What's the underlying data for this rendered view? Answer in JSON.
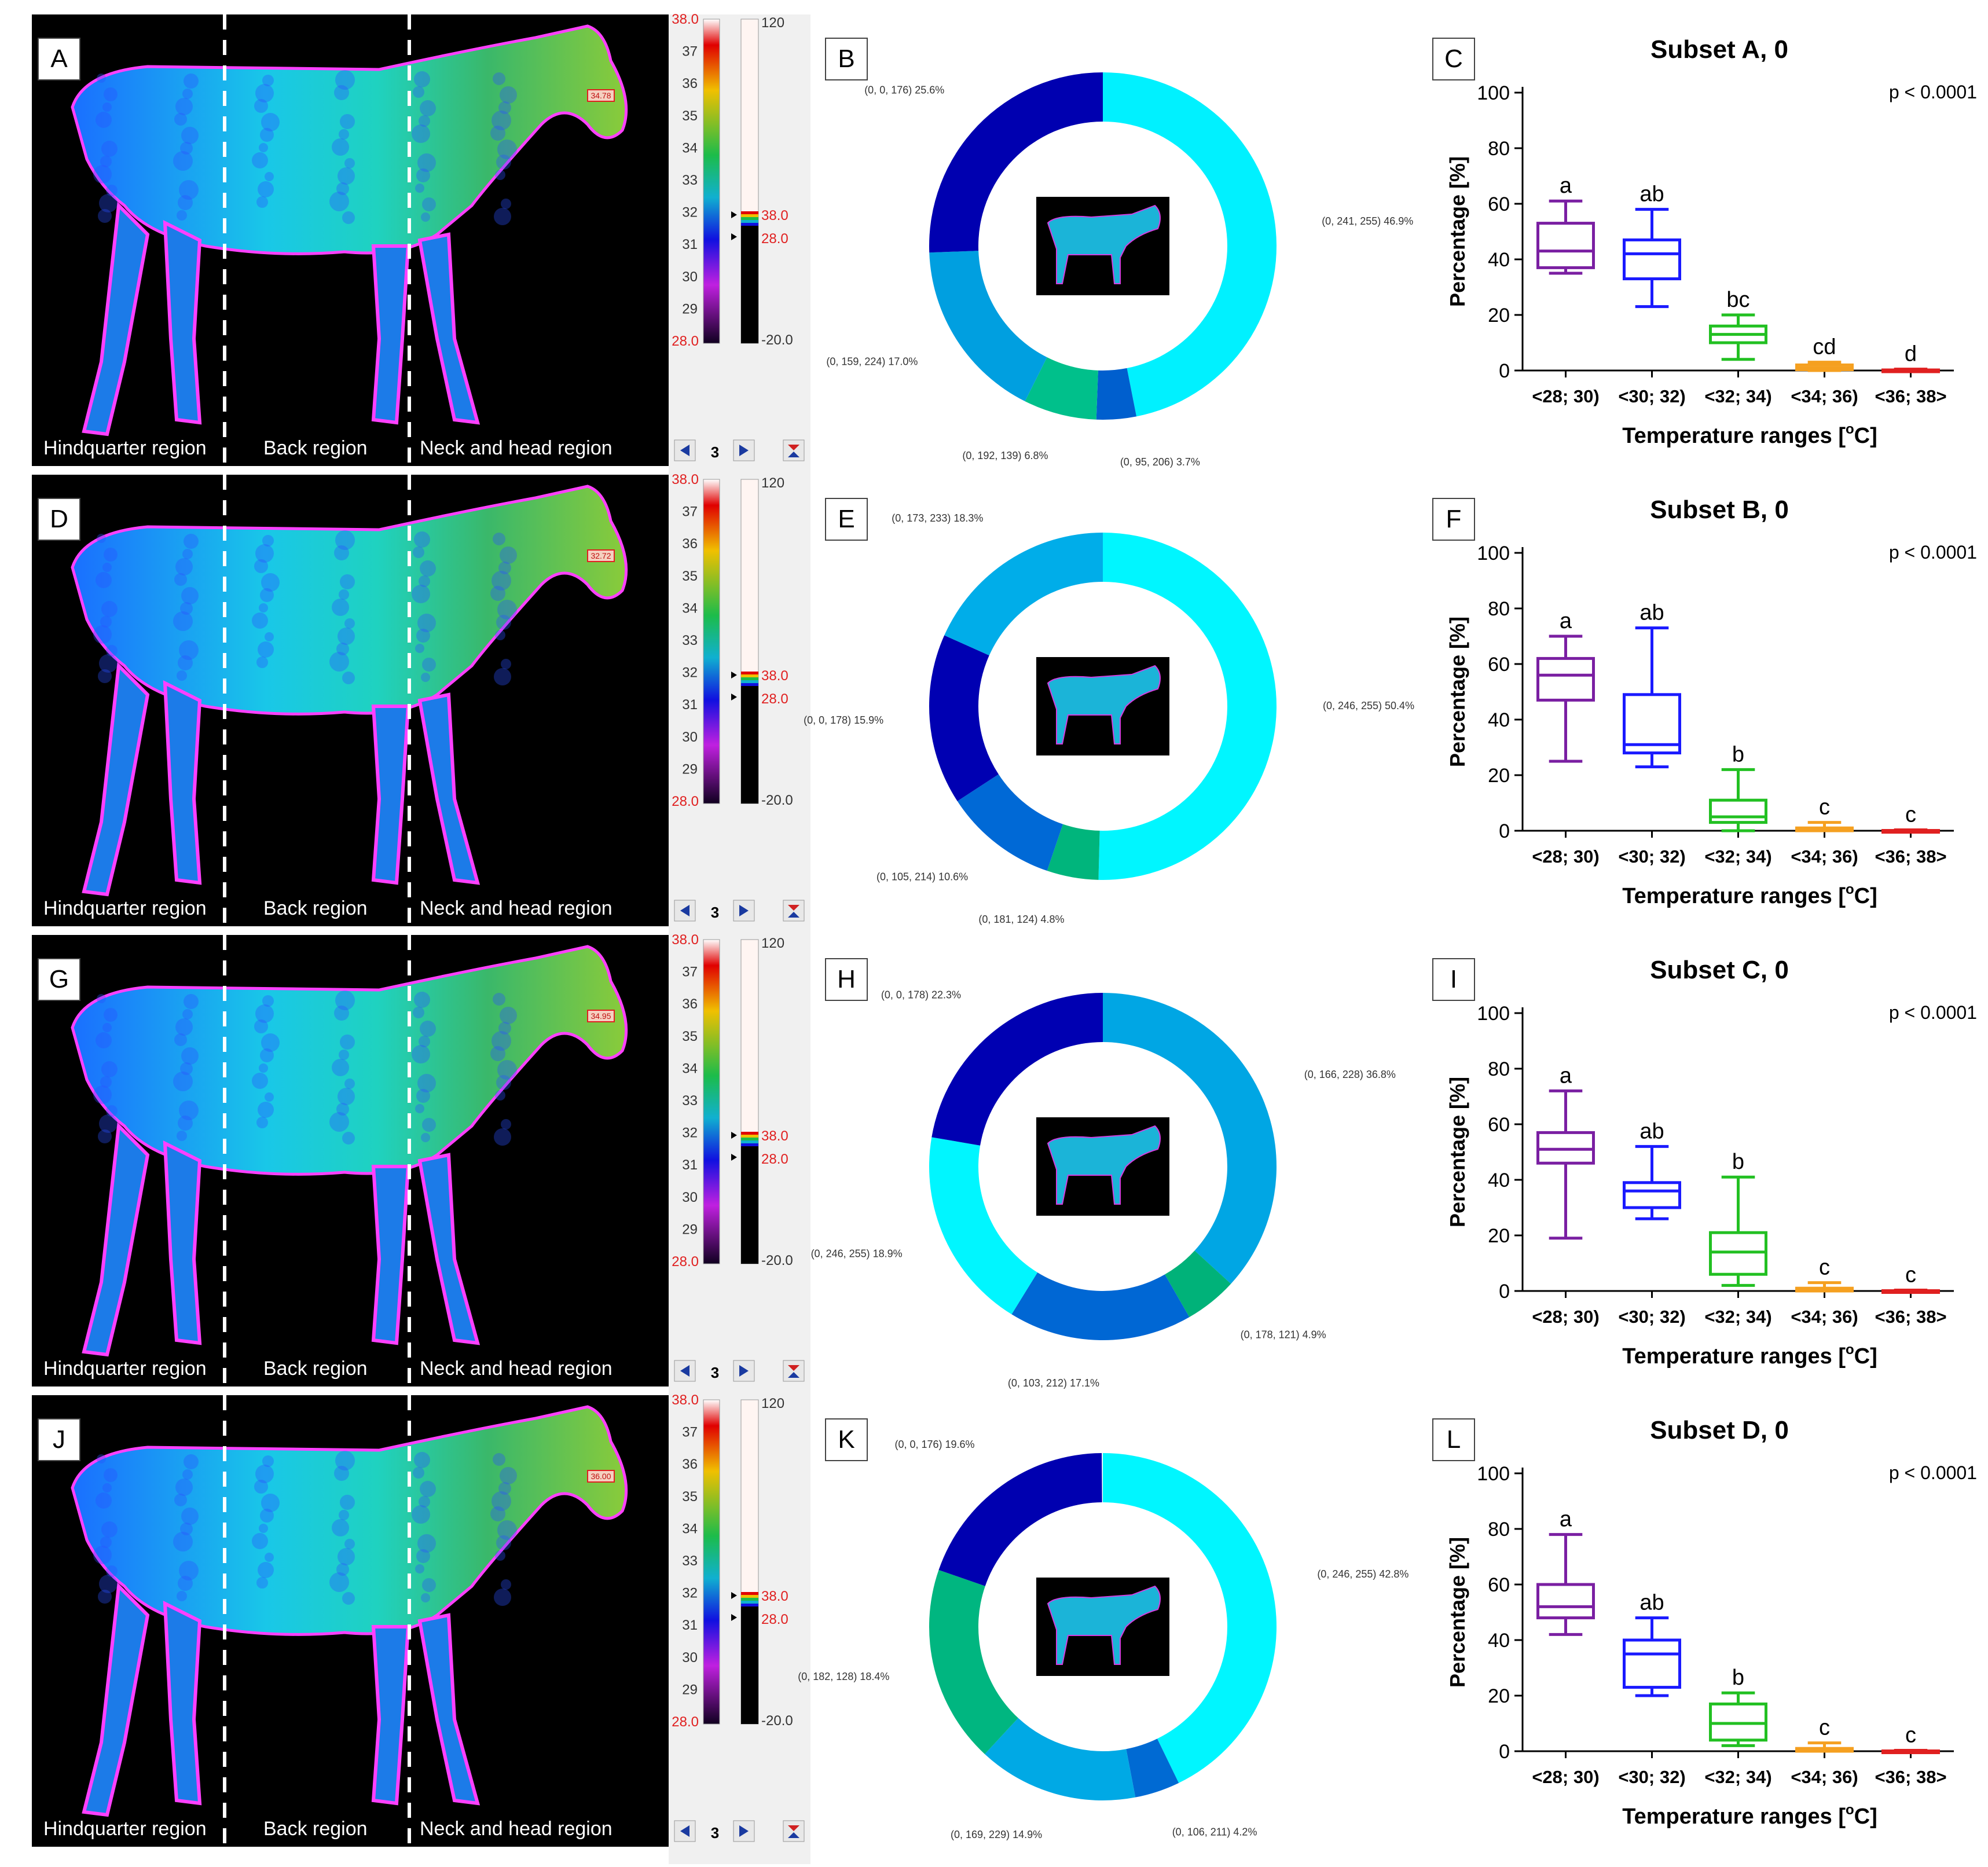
{
  "colors": {
    "purple": "#7a1fa2",
    "blue": "#1a1aff",
    "green": "#22c022",
    "orange": "#f5a020",
    "red": "#e02020",
    "cyan": "#00f1ff",
    "navy": "#0000b0",
    "teal": "#00b08b",
    "skyblue": "#009fe0",
    "royal": "#005fce"
  },
  "regions": [
    "Hindquarter region",
    "Back region",
    "Neck and head region"
  ],
  "scale": {
    "ticks": [
      "38.0",
      "37",
      "36",
      "35",
      "34",
      "33",
      "32",
      "31",
      "30",
      "29",
      "28.0"
    ],
    "right_top": "120",
    "right_bottom": "-20.0",
    "marker_hi": "38.0",
    "marker_lo": "28.0",
    "nav_value": "3"
  },
  "rows": [
    {
      "thermal_label": "A",
      "temp_tag": "34.78",
      "donut_label": "B",
      "box_label": "C",
      "donut": [
        {
          "label": "(0, 241, 255) 46.9%",
          "pct": 46.9,
          "color": "#00f1ff"
        },
        {
          "label": "(0, 95, 206) 3.7%",
          "pct": 3.7,
          "color": "#005fce"
        },
        {
          "label": "(0, 192, 139) 6.8%",
          "pct": 6.8,
          "color": "#00c08b"
        },
        {
          "label": "(0, 159, 224) 17.0%",
          "pct": 17.0,
          "color": "#009fe0"
        },
        {
          "label": "(0, 0, 176) 25.6%",
          "pct": 25.6,
          "color": "#0000b0"
        }
      ]
    },
    {
      "thermal_label": "D",
      "temp_tag": "32.72",
      "donut_label": "E",
      "box_label": "F",
      "donut": [
        {
          "label": "(0, 246, 255) 50.4%",
          "pct": 50.4,
          "color": "#00f6ff"
        },
        {
          "label": "(0, 181, 124) 4.8%",
          "pct": 4.8,
          "color": "#00b57c"
        },
        {
          "label": "(0, 105, 214) 10.6%",
          "pct": 10.6,
          "color": "#0069d6"
        },
        {
          "label": "(0, 0, 178) 15.9%",
          "pct": 15.9,
          "color": "#0000b2"
        },
        {
          "label": "(0, 173, 233) 18.3%",
          "pct": 18.3,
          "color": "#00ade9"
        }
      ]
    },
    {
      "thermal_label": "G",
      "temp_tag": "34.95",
      "donut_label": "H",
      "box_label": "I",
      "donut": [
        {
          "label": "(0, 166, 228) 36.8%",
          "pct": 36.8,
          "color": "#00a6e4"
        },
        {
          "label": "(0, 178, 121) 4.9%",
          "pct": 4.9,
          "color": "#00b279"
        },
        {
          "label": "(0, 103, 212) 17.1%",
          "pct": 17.1,
          "color": "#0067d4"
        },
        {
          "label": "(0, 246, 255) 18.9%",
          "pct": 18.9,
          "color": "#00f6ff"
        },
        {
          "label": "(0, 0, 178) 22.3%",
          "pct": 22.3,
          "color": "#0000b2"
        }
      ]
    },
    {
      "thermal_label": "J",
      "temp_tag": "36.00",
      "donut_label": "K",
      "box_label": "L",
      "donut": [
        {
          "label": "(0, 246, 255) 42.8%",
          "pct": 42.8,
          "color": "#00f6ff"
        },
        {
          "label": "(0, 106, 211) 4.2%",
          "pct": 4.2,
          "color": "#006ad3"
        },
        {
          "label": "(0, 169, 229) 14.9%",
          "pct": 14.9,
          "color": "#00a9e5"
        },
        {
          "label": "(0, 182, 128) 18.4%",
          "pct": 18.4,
          "color": "#00b680"
        },
        {
          "label": "(0, 0, 176) 19.6%",
          "pct": 19.6,
          "color": "#0000b0"
        }
      ]
    }
  ],
  "chart_data": [
    {
      "type": "box",
      "title": "Subset A, 0",
      "p_value": "p < 0.0001",
      "xlabel": "Temperature ranges [",
      "xlabel_sup": "o",
      "xlabel_end": "C]",
      "ylabel": "Percentage [%]",
      "ylim": [
        0,
        100
      ],
      "yticks": [
        "0",
        "20",
        "40",
        "60",
        "80",
        "100"
      ],
      "categories": [
        "<28; 30)",
        "<30; 32)",
        "<32; 34)",
        "<34; 36)",
        "<36; 38>"
      ],
      "letters": [
        "a",
        "ab",
        "bc",
        "cd",
        "d"
      ],
      "boxes": [
        {
          "min": 35,
          "q1": 37,
          "median": 43,
          "q3": 53,
          "max": 61
        },
        {
          "min": 23,
          "q1": 33,
          "median": 42,
          "q3": 47,
          "max": 58
        },
        {
          "min": 4,
          "q1": 10,
          "median": 13,
          "q3": 16,
          "max": 20
        },
        {
          "min": 0,
          "q1": 0.3,
          "median": 1,
          "q3": 2,
          "max": 3
        },
        {
          "min": 0,
          "q1": 0,
          "median": 0,
          "q3": 0.2,
          "max": 0.5
        }
      ]
    },
    {
      "type": "box",
      "title": "Subset B, 0",
      "p_value": "p < 0.0001",
      "xlabel": "Temperature ranges [",
      "xlabel_sup": "o",
      "xlabel_end": "C]",
      "ylabel": "Percentage [%]",
      "ylim": [
        0,
        100
      ],
      "yticks": [
        "0",
        "20",
        "40",
        "60",
        "80",
        "100"
      ],
      "categories": [
        "<28; 30)",
        "<30; 32)",
        "<32; 34)",
        "<34; 36)",
        "<36; 38>"
      ],
      "letters": [
        "a",
        "ab",
        "b",
        "c",
        "c"
      ],
      "boxes": [
        {
          "min": 25,
          "q1": 47,
          "median": 56,
          "q3": 62,
          "max": 70
        },
        {
          "min": 23,
          "q1": 28,
          "median": 31,
          "q3": 49,
          "max": 73
        },
        {
          "min": 0,
          "q1": 3,
          "median": 5,
          "q3": 11,
          "max": 22
        },
        {
          "min": 0,
          "q1": 0,
          "median": 0.2,
          "q3": 1,
          "max": 3
        },
        {
          "min": 0,
          "q1": 0,
          "median": 0,
          "q3": 0.1,
          "max": 0.3
        }
      ]
    },
    {
      "type": "box",
      "title": "Subset C, 0",
      "p_value": "p < 0.0001",
      "xlabel": "Temperature ranges [",
      "xlabel_sup": "o",
      "xlabel_end": "C]",
      "ylabel": "Percentage [%]",
      "ylim": [
        0,
        100
      ],
      "yticks": [
        "0",
        "20",
        "40",
        "60",
        "80",
        "100"
      ],
      "categories": [
        "<28; 30)",
        "<30; 32)",
        "<32; 34)",
        "<34; 36)",
        "<36; 38>"
      ],
      "letters": [
        "a",
        "ab",
        "b",
        "c",
        "c"
      ],
      "boxes": [
        {
          "min": 19,
          "q1": 46,
          "median": 51,
          "q3": 57,
          "max": 72
        },
        {
          "min": 26,
          "q1": 30,
          "median": 36,
          "q3": 39,
          "max": 52
        },
        {
          "min": 2,
          "q1": 6,
          "median": 14,
          "q3": 21,
          "max": 41
        },
        {
          "min": 0,
          "q1": 0,
          "median": 0.3,
          "q3": 1,
          "max": 3
        },
        {
          "min": 0,
          "q1": 0,
          "median": 0,
          "q3": 0.1,
          "max": 0.3
        }
      ]
    },
    {
      "type": "box",
      "title": "Subset D, 0",
      "p_value": "p < 0.0001",
      "xlabel": "Temperature ranges [",
      "xlabel_sup": "o",
      "xlabel_end": "C]",
      "ylabel": "Percentage [%]",
      "ylim": [
        0,
        100
      ],
      "yticks": [
        "0",
        "20",
        "40",
        "60",
        "80",
        "100"
      ],
      "categories": [
        "<28; 30)",
        "<30; 32)",
        "<32; 34)",
        "<34; 36)",
        "<36; 38>"
      ],
      "letters": [
        "a",
        "ab",
        "b",
        "c",
        "c"
      ],
      "boxes": [
        {
          "min": 42,
          "q1": 48,
          "median": 52,
          "q3": 60,
          "max": 78
        },
        {
          "min": 20,
          "q1": 23,
          "median": 35,
          "q3": 40,
          "max": 48
        },
        {
          "min": 2,
          "q1": 4,
          "median": 10,
          "q3": 17,
          "max": 21
        },
        {
          "min": 0,
          "q1": 0,
          "median": 0.3,
          "q3": 1,
          "max": 3
        },
        {
          "min": 0,
          "q1": 0,
          "median": 0,
          "q3": 0.1,
          "max": 0.3
        }
      ]
    }
  ]
}
